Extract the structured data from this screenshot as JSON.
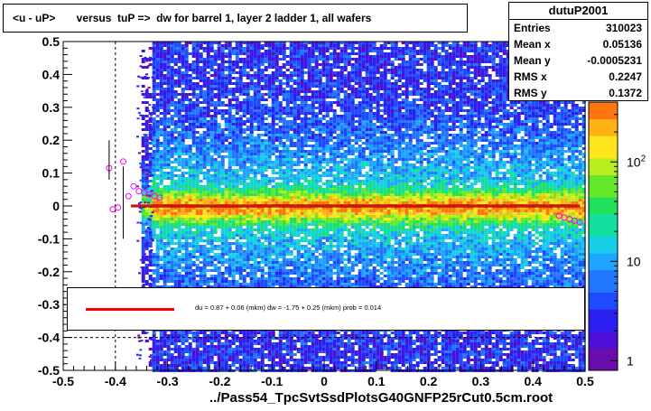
{
  "title": "<u - uP>       versus  tuP =>  dw for barrel 1, layer 2 ladder 1, all wafers",
  "stats": {
    "name": "dutuP2001",
    "rows": [
      {
        "label": "Entries",
        "value": "310023"
      },
      {
        "label": "Mean x",
        "value": "0.05136"
      },
      {
        "label": "Mean y",
        "value": "-0.0005231"
      },
      {
        "label": "RMS x",
        "value": "0.2247"
      },
      {
        "label": "RMS y",
        "value": "0.1372"
      }
    ]
  },
  "fit_text": "du =     0.87 +  0.06 (mkm) dw =   -1.75 +  0.25 (mkm) prob = 0.014",
  "x_title": "../Pass54_TpcSvtSsdPlotsG40GNFP25rCut0.5cm.root",
  "colors": {
    "fit_line": "#ff0000",
    "profile_marker": "#ff00ff",
    "frame": "#000000"
  },
  "chart_data": {
    "type": "heatmap",
    "xlim": [
      -0.5,
      0.5
    ],
    "ylim": [
      -0.5,
      0.5
    ],
    "x_ticks": [
      "-0.5",
      "-0.4",
      "-0.3",
      "-0.2",
      "-0.1",
      "0",
      "0.1",
      "0.2",
      "0.3",
      "0.4",
      "0.5"
    ],
    "y_ticks": [
      "-0.5",
      "-0.4",
      "-0.3",
      "-0.2",
      "-0.1",
      "0",
      "0.1",
      "0.2",
      "0.3",
      "0.4",
      "0.5"
    ],
    "z_scale": "log",
    "z_ticks": [
      {
        "value": 1,
        "label": "1"
      },
      {
        "value": 10,
        "label": "10"
      },
      {
        "value": 100,
        "label": "10^2"
      }
    ],
    "z_range": [
      0.8,
      400
    ],
    "dashed_lines": {
      "x": -0.4,
      "y1": -0.3,
      "y2": -0.4
    },
    "profile_points": [
      {
        "x": -0.412,
        "y": 0.115
      },
      {
        "x": -0.405,
        "y": -0.01
      },
      {
        "x": -0.395,
        "y": -0.005
      },
      {
        "x": -0.385,
        "y": 0.135
      },
      {
        "x": -0.375,
        "y": 0.03
      },
      {
        "x": -0.365,
        "y": 0.06
      },
      {
        "x": -0.355,
        "y": 0.045
      },
      {
        "x": -0.345,
        "y": 0.04
      },
      {
        "x": -0.335,
        "y": 0.035
      },
      {
        "x": -0.325,
        "y": 0.03
      },
      {
        "x": -0.315,
        "y": 0.025
      },
      {
        "x": 0.45,
        "y": -0.03
      },
      {
        "x": 0.46,
        "y": -0.035
      },
      {
        "x": 0.47,
        "y": -0.04
      },
      {
        "x": 0.48,
        "y": -0.045
      },
      {
        "x": 0.49,
        "y": -0.05
      }
    ]
  }
}
